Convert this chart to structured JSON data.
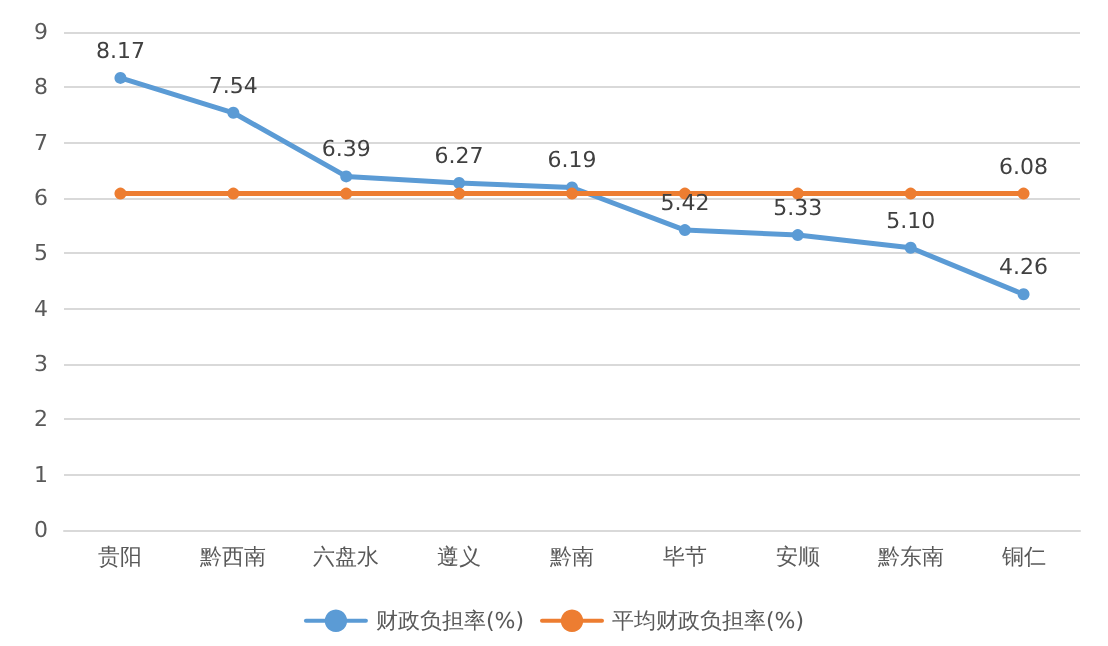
{
  "chart_data": {
    "type": "line",
    "categories": [
      "贵阳",
      "黔西南",
      "六盘水",
      "遵义",
      "黔南",
      "毕节",
      "安顺",
      "黔东南",
      "铜仁"
    ],
    "series": [
      {
        "name": "财政负担率(%)",
        "color": "#5b9bd5",
        "values": [
          8.17,
          7.54,
          6.39,
          6.27,
          6.19,
          5.42,
          5.33,
          5.1,
          4.26
        ],
        "value_labels": [
          "8.17",
          "7.54",
          "6.39",
          "6.27",
          "6.19",
          "5.42",
          "5.33",
          "5.10",
          "4.26"
        ]
      },
      {
        "name": "平均财政负担率(%)",
        "color": "#ed7d31",
        "values": [
          6.08,
          6.08,
          6.08,
          6.08,
          6.08,
          6.08,
          6.08,
          6.08,
          6.08
        ],
        "value_labels": [
          null,
          null,
          null,
          null,
          null,
          null,
          null,
          null,
          "6.08"
        ]
      }
    ],
    "ylim": [
      0,
      9
    ],
    "yticks": [
      0,
      1,
      2,
      3,
      4,
      5,
      6,
      7,
      8,
      9
    ],
    "grid": "y",
    "legend": "bottom",
    "marker": "circle",
    "line_style": "solid"
  }
}
